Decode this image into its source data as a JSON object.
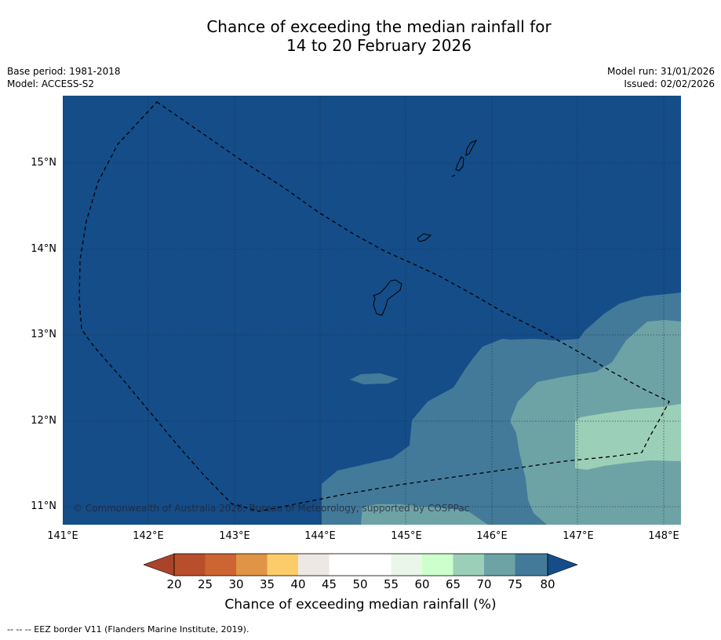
{
  "header": {
    "title_line1": "Chance of exceeding the median rainfall for",
    "title_line2": "14 to 20 February 2026",
    "base_period": "Base period: 1981-2018",
    "model": "Model: ACCESS-S2",
    "model_run": "Model run: 31/01/2026",
    "issued": "Issued: 02/02/2026"
  },
  "map": {
    "copyright": "© Commonwealth of Australia 2026, Bureau of Meteorology, supported by COSPPac",
    "lat_ticks": [
      "15°N",
      "14°N",
      "13°N",
      "12°N",
      "11°N"
    ],
    "lon_ticks": [
      "141°E",
      "142°E",
      "143°E",
      "144°E",
      "145°E",
      "146°E",
      "147°E",
      "148°E"
    ],
    "features": [
      "Guam",
      "Rota",
      "Saipan",
      "Tinian",
      "EEZ border"
    ]
  },
  "legend": {
    "ticks": [
      "20",
      "25",
      "30",
      "35",
      "40",
      "45",
      "50",
      "55",
      "60",
      "65",
      "70",
      "75",
      "80"
    ],
    "label": "Chance of exceeding median rainfall (%)",
    "colors": [
      "#a9442a",
      "#b84e2c",
      "#cc6532",
      "#e09445",
      "#fccc6a",
      "#ede8e3",
      "#ffffff",
      "#ffffff",
      "#e9f6e9",
      "#ccffcc",
      "#9ccfb7",
      "#6ea3a6",
      "#437a99",
      "#144d88"
    ]
  },
  "footer": {
    "eez_note": "-- -- -- EEZ border V11 (Flanders Marine Institute, 2019)."
  }
}
